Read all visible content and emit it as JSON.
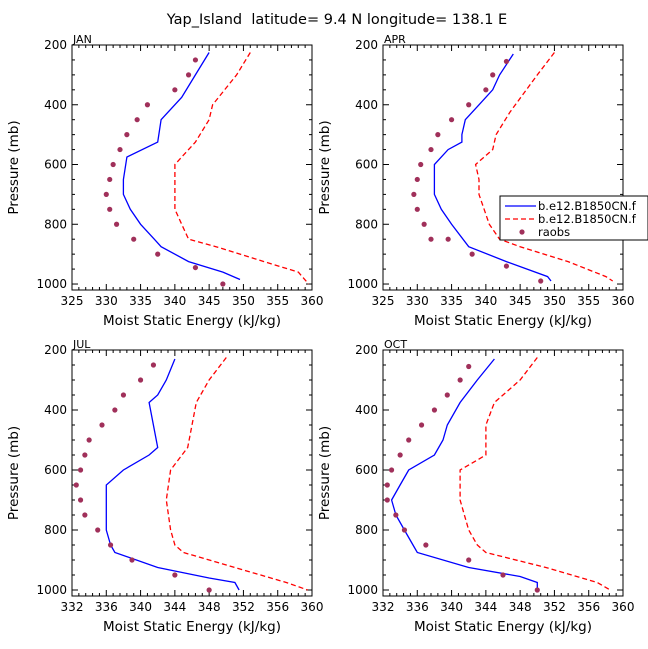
{
  "title": "Yap_Island  latitude= 9.4 N longitude= 138.1 E",
  "chart_data": [
    {
      "type": "line",
      "panel": "JAN",
      "xlabel": "Moist Static Energy (kJ/kg)",
      "ylabel": "Pressure (mb)",
      "xlim": [
        325,
        360
      ],
      "ylim": [
        1020,
        200
      ],
      "xticks": [
        "325",
        "330",
        "335",
        "340",
        "345",
        "350",
        "355",
        "360"
      ],
      "yticks": [
        "200",
        "400",
        "600",
        "800",
        "1000"
      ],
      "series": [
        {
          "name": "b.e12.B1850CN.f",
          "style": "solid",
          "color": "#0000ff",
          "points": [
            [
              345,
              225
            ],
            [
              343,
              300
            ],
            [
              341,
              375
            ],
            [
              338,
              450
            ],
            [
              337.5,
              525
            ],
            [
              333,
              575
            ],
            [
              332.5,
              650
            ],
            [
              332.5,
              700
            ],
            [
              333.5,
              750
            ],
            [
              335,
              800
            ],
            [
              337,
              850
            ],
            [
              338,
              875
            ],
            [
              342,
              925
            ],
            [
              347,
              960
            ],
            [
              349.5,
              985
            ]
          ]
        },
        {
          "name": "b.e12.B1850CN.f",
          "style": "dashed",
          "color": "#ff0000",
          "points": [
            [
              351,
              225
            ],
            [
              349,
              300
            ],
            [
              345.5,
              400
            ],
            [
              345,
              450
            ],
            [
              343,
              525
            ],
            [
              340,
              600
            ],
            [
              340,
              750
            ],
            [
              341,
              800
            ],
            [
              342,
              850
            ],
            [
              346,
              875
            ],
            [
              353,
              925
            ],
            [
              358,
              960
            ],
            [
              359.5,
              1000
            ]
          ]
        }
      ],
      "raobs": [
        [
          343,
          250
        ],
        [
          342,
          300
        ],
        [
          340,
          350
        ],
        [
          336,
          400
        ],
        [
          334.5,
          450
        ],
        [
          333,
          500
        ],
        [
          332,
          550
        ],
        [
          331,
          600
        ],
        [
          330.5,
          650
        ],
        [
          330,
          700
        ],
        [
          330.5,
          750
        ],
        [
          331.5,
          800
        ],
        [
          334,
          850
        ],
        [
          337.5,
          900
        ],
        [
          343,
          945
        ],
        [
          347,
          1000
        ]
      ]
    },
    {
      "type": "line",
      "panel": "APR",
      "xlabel": "Moist Static Energy (kJ/kg)",
      "ylabel": "Pressure (mb)",
      "xlim": [
        325,
        360
      ],
      "ylim": [
        1020,
        200
      ],
      "xticks": [
        "325",
        "330",
        "335",
        "340",
        "345",
        "350",
        "355",
        "360"
      ],
      "yticks": [
        "200",
        "400",
        "600",
        "800",
        "1000"
      ],
      "legend": {
        "entries": [
          "b.e12.B1850CN.f",
          "b.e12.B1850CN.f",
          "raobs"
        ],
        "position": "right"
      },
      "series": [
        {
          "name": "b.e12.B1850CN.f",
          "style": "solid",
          "color": "#0000ff",
          "points": [
            [
              344,
              230
            ],
            [
              342,
              300
            ],
            [
              341,
              350
            ],
            [
              339,
              400
            ],
            [
              337,
              450
            ],
            [
              336.5,
              500
            ],
            [
              336.5,
              525
            ],
            [
              334.5,
              550
            ],
            [
              332.5,
              600
            ],
            [
              332.5,
              700
            ],
            [
              333.5,
              750
            ],
            [
              335,
              800
            ],
            [
              337.5,
              875
            ],
            [
              343,
              925
            ],
            [
              349,
              975
            ],
            [
              349.5,
              990
            ]
          ]
        },
        {
          "name": "b.e12.B1850CN.f",
          "style": "dashed",
          "color": "#ff0000",
          "points": [
            [
              350,
              225
            ],
            [
              347.5,
              300
            ],
            [
              343.5,
              425
            ],
            [
              341.5,
              500
            ],
            [
              341,
              550
            ],
            [
              338.5,
              600
            ],
            [
              339,
              650
            ],
            [
              339,
              700
            ],
            [
              340.5,
              800
            ],
            [
              342,
              850
            ],
            [
              345,
              875
            ],
            [
              352,
              925
            ],
            [
              357.5,
              975
            ],
            [
              358.5,
              990
            ]
          ]
        }
      ],
      "raobs": [
        [
          343,
          255
        ],
        [
          341,
          300
        ],
        [
          340,
          350
        ],
        [
          337.5,
          400
        ],
        [
          335,
          450
        ],
        [
          333,
          500
        ],
        [
          332,
          550
        ],
        [
          330.5,
          600
        ],
        [
          330,
          650
        ],
        [
          329.5,
          700
        ],
        [
          330,
          750
        ],
        [
          331,
          800
        ],
        [
          332,
          850
        ],
        [
          334.5,
          850
        ],
        [
          338,
          900
        ],
        [
          343,
          940
        ],
        [
          348,
          990
        ]
      ]
    },
    {
      "type": "line",
      "panel": "JUL",
      "xlabel": "Moist Static Energy (kJ/kg)",
      "ylabel": "Pressure (mb)",
      "xlim": [
        332,
        360
      ],
      "ylim": [
        1020,
        200
      ],
      "xticks": [
        "332",
        "336",
        "340",
        "344",
        "348",
        "352",
        "356",
        "360"
      ],
      "yticks": [
        "200",
        "400",
        "600",
        "800",
        "1000"
      ],
      "series": [
        {
          "name": "b.e12.B1850CN.f",
          "style": "solid",
          "color": "#0000ff",
          "points": [
            [
              344,
              230
            ],
            [
              343,
              300
            ],
            [
              342,
              350
            ],
            [
              341,
              375
            ],
            [
              341.5,
              450
            ],
            [
              342,
              525
            ],
            [
              341,
              550
            ],
            [
              338,
              600
            ],
            [
              336,
              650
            ],
            [
              336,
              700
            ],
            [
              336,
              800
            ],
            [
              336.5,
              850
            ],
            [
              337,
              875
            ],
            [
              342,
              925
            ],
            [
              348,
              960
            ],
            [
              351,
              975
            ],
            [
              351.5,
              1000
            ]
          ]
        },
        {
          "name": "b.e12.B1850CN.f",
          "style": "dashed",
          "color": "#ff0000",
          "points": [
            [
              350,
              225
            ],
            [
              348,
              300
            ],
            [
              346.5,
              375
            ],
            [
              346,
              450
            ],
            [
              345.5,
              525
            ],
            [
              343.5,
              600
            ],
            [
              343,
              700
            ],
            [
              343.5,
              800
            ],
            [
              344,
              850
            ],
            [
              345,
              875
            ],
            [
              351,
              925
            ],
            [
              357,
              975
            ],
            [
              359.5,
              1000
            ]
          ]
        }
      ],
      "raobs": [
        [
          341.5,
          250
        ],
        [
          340,
          300
        ],
        [
          338,
          350
        ],
        [
          337,
          400
        ],
        [
          335.5,
          450
        ],
        [
          334,
          500
        ],
        [
          333.5,
          550
        ],
        [
          333,
          600
        ],
        [
          332.5,
          650
        ],
        [
          333,
          700
        ],
        [
          333.5,
          750
        ],
        [
          335,
          800
        ],
        [
          336.5,
          850
        ],
        [
          339,
          900
        ],
        [
          344,
          950
        ],
        [
          348,
          1000
        ]
      ]
    },
    {
      "type": "line",
      "panel": "OCT",
      "xlabel": "Moist Static Energy (kJ/kg)",
      "ylabel": "Pressure (mb)",
      "xlim": [
        332,
        360
      ],
      "ylim": [
        1020,
        200
      ],
      "xticks": [
        "332",
        "336",
        "340",
        "344",
        "348",
        "352",
        "356",
        "360"
      ],
      "yticks": [
        "200",
        "400",
        "600",
        "800",
        "1000"
      ],
      "series": [
        {
          "name": "b.e12.B1850CN.f",
          "style": "solid",
          "color": "#0000ff",
          "points": [
            [
              345,
              230
            ],
            [
              343,
              300
            ],
            [
              341,
              375
            ],
            [
              339.5,
              450
            ],
            [
              339,
              500
            ],
            [
              338,
              550
            ],
            [
              335,
              600
            ],
            [
              334,
              650
            ],
            [
              333,
              700
            ],
            [
              333.5,
              750
            ],
            [
              334.5,
              800
            ],
            [
              335.5,
              850
            ],
            [
              336,
              875
            ],
            [
              342,
              925
            ],
            [
              348,
              955
            ],
            [
              350,
              975
            ],
            [
              350,
              1000
            ]
          ]
        },
        {
          "name": "b.e12.B1850CN.f",
          "style": "dashed",
          "color": "#ff0000",
          "points": [
            [
              350,
              225
            ],
            [
              348,
              300
            ],
            [
              346,
              350
            ],
            [
              345,
              375
            ],
            [
              344,
              450
            ],
            [
              344,
              550
            ],
            [
              341,
              600
            ],
            [
              341,
              700
            ],
            [
              342,
              800
            ],
            [
              343,
              850
            ],
            [
              344,
              875
            ],
            [
              351,
              925
            ],
            [
              357,
              975
            ],
            [
              358.5,
              1000
            ]
          ]
        }
      ],
      "raobs": [
        [
          342,
          255
        ],
        [
          341,
          300
        ],
        [
          339.5,
          350
        ],
        [
          338,
          400
        ],
        [
          336.5,
          450
        ],
        [
          335,
          500
        ],
        [
          334,
          550
        ],
        [
          333,
          600
        ],
        [
          332.5,
          650
        ],
        [
          332.5,
          700
        ],
        [
          333.5,
          750
        ],
        [
          334.5,
          800
        ],
        [
          337,
          850
        ],
        [
          342,
          900
        ],
        [
          346,
          950
        ],
        [
          350,
          1000
        ]
      ]
    }
  ]
}
